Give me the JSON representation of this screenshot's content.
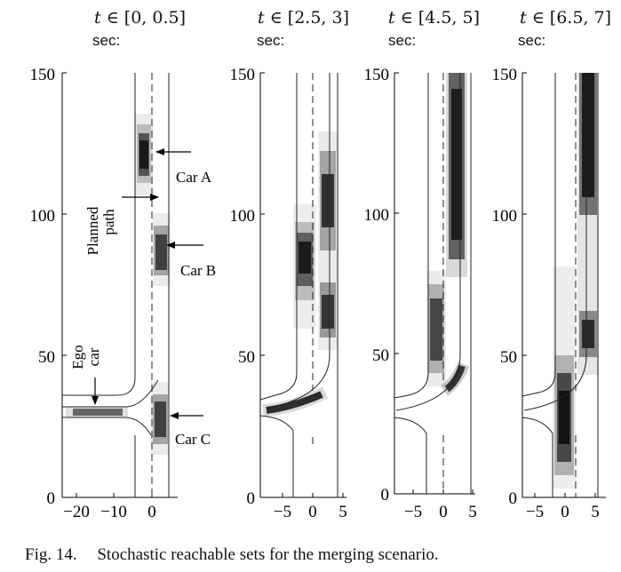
{
  "panels": [
    {
      "title_t": "t",
      "title_range": "∈ [0, 0.5]",
      "unit": "sec:"
    },
    {
      "title_t": "t",
      "title_range": "∈ [2.5, 3]",
      "unit": "sec:"
    },
    {
      "title_t": "t",
      "title_range": "∈ [4.5, 5]",
      "unit": "sec:"
    },
    {
      "title_t": "t",
      "title_range": "∈ [6.5, 7]",
      "unit": "sec:"
    }
  ],
  "annotations": {
    "car_a": "Car A",
    "car_b": "Car B",
    "car_c": "Car C",
    "planned_line1": "Planned",
    "planned_line2": "path",
    "ego_line1": "Ego",
    "ego_line2": "car"
  },
  "axes": {
    "panel1_xticks": [
      "−20",
      "−10",
      "0"
    ],
    "panel_xticks": [
      "−5",
      "0",
      "5"
    ],
    "yticks": [
      "0",
      "50",
      "100",
      "150"
    ]
  },
  "caption": {
    "label": "Fig. 14.",
    "text": "Stochastic reachable sets for the merging scenario."
  }
}
